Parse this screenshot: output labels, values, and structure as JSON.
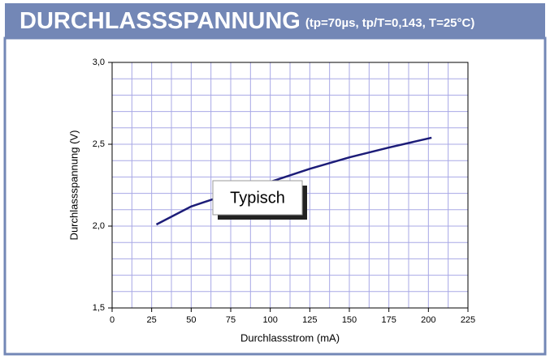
{
  "chart_data": {
    "type": "line",
    "title": "DURCHLASSSPANNUNG",
    "subtitle": "(tp=70µs, tp/T=0,143, T=25°C)",
    "x_label": "Durchlassstrom (mA)",
    "y_label": "Durchlassspannung (V)",
    "annotation": "Typisch",
    "x": [
      28,
      50,
      75,
      100,
      125,
      150,
      175,
      202
    ],
    "series": [
      {
        "name": "Typisch",
        "color": "#1c1c78",
        "values": [
          2.01,
          2.12,
          2.2,
          2.27,
          2.35,
          2.42,
          2.48,
          2.54
        ]
      }
    ],
    "xlim": [
      0,
      225
    ],
    "xticks": [
      0,
      25,
      50,
      75,
      100,
      125,
      150,
      175,
      200,
      225
    ],
    "ylim": [
      1.5,
      3.0
    ],
    "yticks": [
      {
        "value": 1.5,
        "label": "1,5"
      },
      {
        "value": 2.0,
        "label": "2,0"
      },
      {
        "value": 2.5,
        "label": "2,5"
      },
      {
        "value": 3.0,
        "label": "3,0"
      }
    ],
    "grid": true,
    "grid_minor": {
      "x": 2,
      "y": 5
    },
    "grid_color": "#a8a8e6"
  }
}
